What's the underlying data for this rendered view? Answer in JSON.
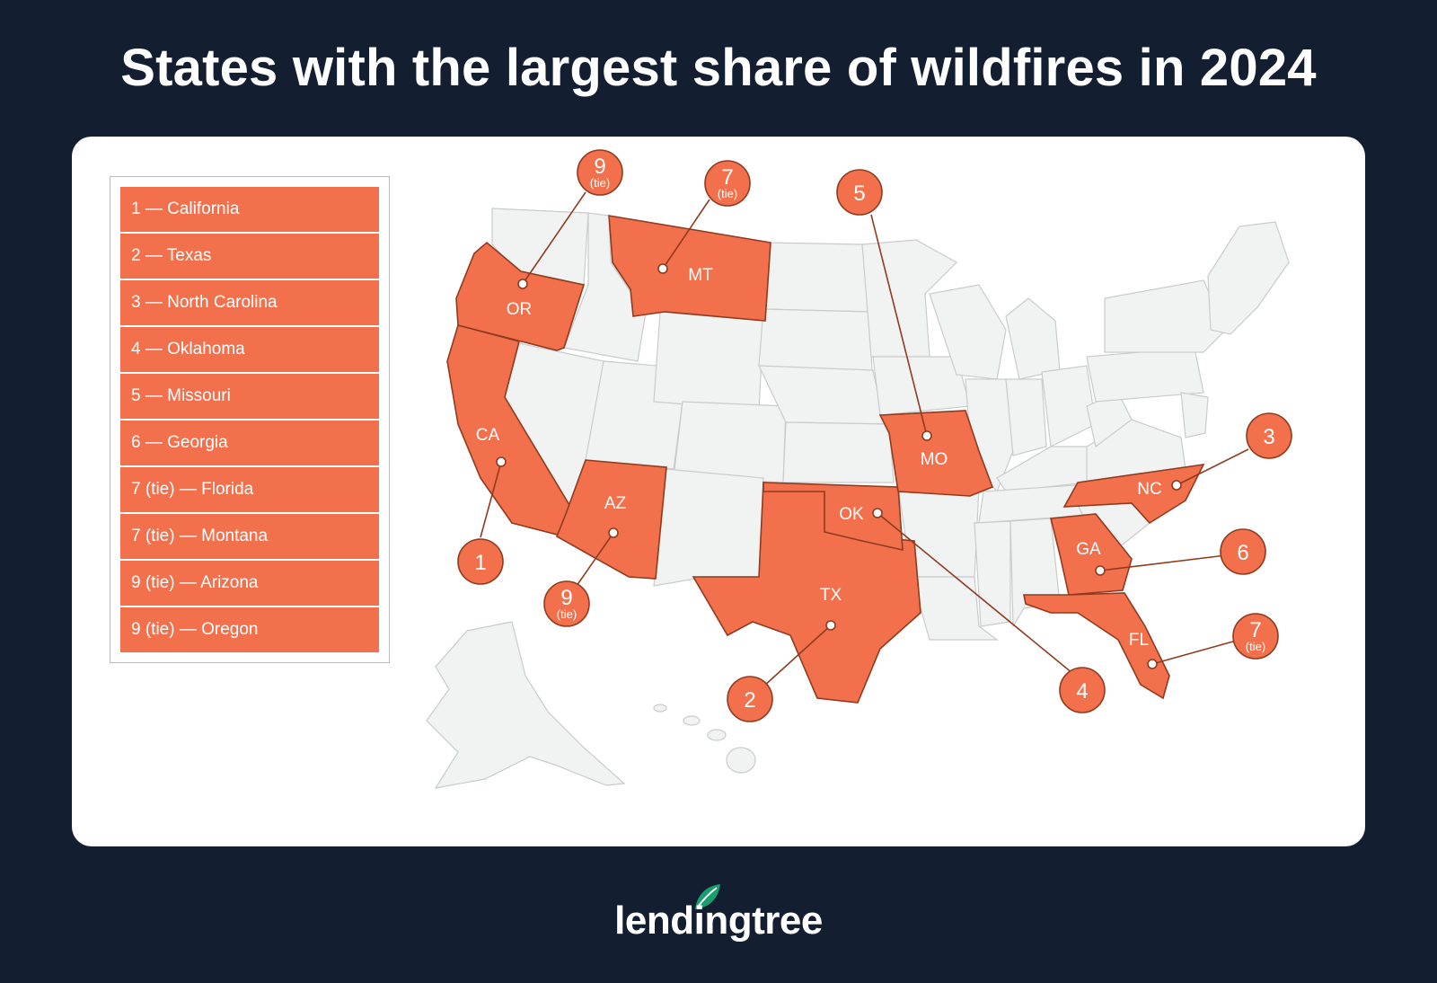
{
  "title": "States with the largest share of wildfires in 2024",
  "legend": [
    {
      "label": "1 — California"
    },
    {
      "label": "2 — Texas"
    },
    {
      "label": "3 — North Carolina"
    },
    {
      "label": "4 — Oklahoma"
    },
    {
      "label": "5 — Missouri"
    },
    {
      "label": "6 — Georgia"
    },
    {
      "label": "7 (tie) — Florida"
    },
    {
      "label": "7 (tie) — Montana"
    },
    {
      "label": "9 (tie) — Arizona"
    },
    {
      "label": "9 (tie) — Oregon"
    }
  ],
  "states": [
    {
      "abbr": "CA",
      "rank": "1",
      "tie": ""
    },
    {
      "abbr": "TX",
      "rank": "2",
      "tie": ""
    },
    {
      "abbr": "NC",
      "rank": "3",
      "tie": ""
    },
    {
      "abbr": "OK",
      "rank": "4",
      "tie": ""
    },
    {
      "abbr": "MO",
      "rank": "5",
      "tie": ""
    },
    {
      "abbr": "GA",
      "rank": "6",
      "tie": ""
    },
    {
      "abbr": "FL",
      "rank": "7",
      "tie": "(tie)"
    },
    {
      "abbr": "MT",
      "rank": "7",
      "tie": "(tie)"
    },
    {
      "abbr": "AZ",
      "rank": "9",
      "tie": "(tie)"
    },
    {
      "abbr": "OR",
      "rank": "9",
      "tie": "(tie)"
    }
  ],
  "brand": "lendingtree",
  "colors": {
    "background": "#131f30",
    "highlight": "#f2704b",
    "base_state": "#f1f2f2",
    "brand_leaf": "#1a9e6e"
  }
}
